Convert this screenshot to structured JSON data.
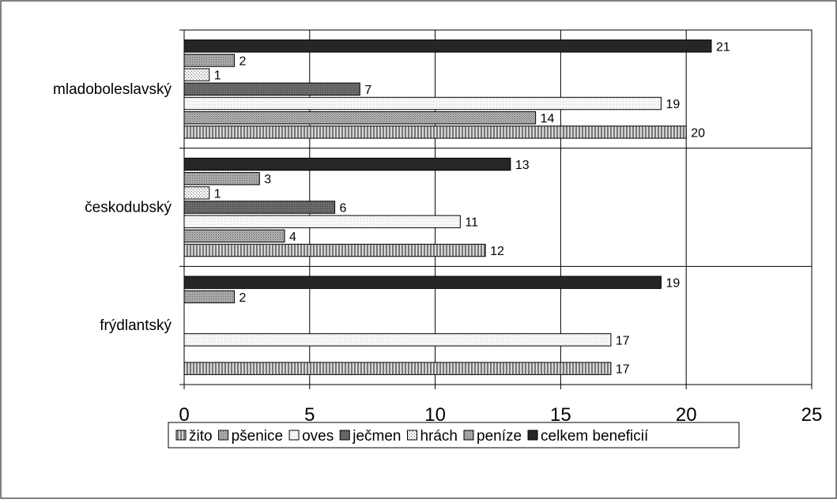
{
  "chart_data": {
    "type": "bar",
    "orientation": "horizontal",
    "categories": [
      "frýdlantský",
      "českodubský",
      "mladoboleslavský"
    ],
    "series": [
      {
        "name": "žito",
        "values": [
          17,
          12,
          20
        ],
        "pattern": "vertical-lines"
      },
      {
        "name": "pšenice",
        "values": [
          null,
          4,
          14
        ],
        "pattern": "fine-dots"
      },
      {
        "name": "oves",
        "values": [
          17,
          11,
          19
        ],
        "pattern": "light-fill"
      },
      {
        "name": "ječmen",
        "values": [
          null,
          6,
          7
        ],
        "pattern": "dark-gray"
      },
      {
        "name": "hrách",
        "values": [
          null,
          1,
          1
        ],
        "pattern": "sparse-dots"
      },
      {
        "name": "peníze",
        "values": [
          2,
          3,
          2
        ],
        "pattern": "medium-dots"
      },
      {
        "name": "celkem beneficií",
        "values": [
          19,
          13,
          21
        ],
        "pattern": "solid-black"
      }
    ],
    "xlim": [
      0,
      25
    ],
    "xticks": [
      "0",
      "5",
      "10",
      "15",
      "20",
      "25"
    ],
    "grid": true,
    "legend": "bottom",
    "title": "",
    "xlabel": "",
    "ylabel": ""
  }
}
